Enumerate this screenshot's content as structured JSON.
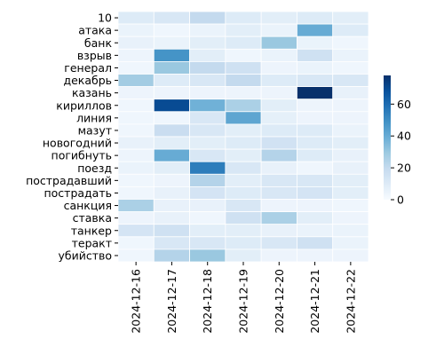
{
  "chart_data": {
    "type": "heatmap",
    "rows": [
      "10",
      "атака",
      "банк",
      "взрыв",
      "генерал",
      "декабрь",
      "казань",
      "кириллов",
      "линия",
      "мазут",
      "новогодний",
      "погибнуть",
      "поезд",
      "пострадавший",
      "пострадать",
      "санкция",
      "ставка",
      "танкер",
      "теракт",
      "убийство"
    ],
    "columns": [
      "2024-12-16",
      "2024-12-17",
      "2024-12-18",
      "2024-12-19",
      "2024-12-20",
      "2024-12-21",
      "2024-12-22"
    ],
    "values": [
      [
        10,
        12,
        20,
        10,
        8,
        10,
        8
      ],
      [
        5,
        3,
        5,
        8,
        5,
        40,
        10
      ],
      [
        6,
        5,
        8,
        10,
        30,
        5,
        3
      ],
      [
        4,
        48,
        8,
        3,
        5,
        16,
        5
      ],
      [
        3,
        30,
        20,
        16,
        4,
        5,
        3
      ],
      [
        28,
        10,
        12,
        20,
        10,
        12,
        12
      ],
      [
        4,
        4,
        4,
        4,
        4,
        78,
        6
      ],
      [
        3,
        70,
        38,
        26,
        8,
        4,
        4
      ],
      [
        3,
        3,
        12,
        42,
        7,
        4,
        4
      ],
      [
        3,
        18,
        12,
        8,
        10,
        10,
        5
      ],
      [
        6,
        8,
        8,
        10,
        15,
        10,
        8
      ],
      [
        4,
        40,
        12,
        8,
        24,
        10,
        6
      ],
      [
        5,
        8,
        55,
        12,
        6,
        3,
        6
      ],
      [
        3,
        4,
        24,
        8,
        12,
        12,
        8
      ],
      [
        3,
        6,
        14,
        10,
        12,
        14,
        8
      ],
      [
        26,
        6,
        6,
        12,
        4,
        4,
        3
      ],
      [
        4,
        6,
        3,
        16,
        26,
        8,
        4
      ],
      [
        14,
        16,
        8,
        8,
        6,
        5,
        5
      ],
      [
        3,
        12,
        12,
        10,
        12,
        16,
        5
      ],
      [
        3,
        24,
        30,
        8,
        4,
        4,
        4
      ]
    ],
    "vmin": 0,
    "vmax": 78,
    "colormap": "Blues",
    "colorbar_ticks": [
      0,
      20,
      40,
      60
    ]
  }
}
